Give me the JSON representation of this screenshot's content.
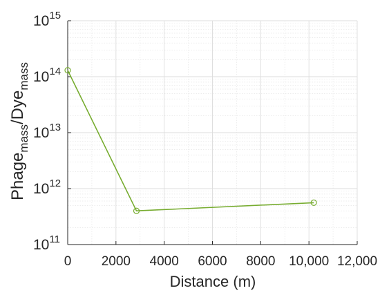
{
  "chart_data": {
    "type": "line",
    "xlabel": "Distance (m)",
    "ylabel": {
      "parts": [
        {
          "text": "Phage",
          "sub": false
        },
        {
          "text": "mass",
          "sub": true
        },
        {
          "text": "/Dye",
          "sub": false
        },
        {
          "text": "mass",
          "sub": true
        }
      ]
    },
    "xlim": [
      0,
      12000
    ],
    "ylim": [
      100000000000,
      1000000000000000
    ],
    "y_scale": "log",
    "grid": true,
    "minor_grid": true,
    "x_ticks": [
      {
        "value": 0,
        "label": "0"
      },
      {
        "value": 2000,
        "label": "2000"
      },
      {
        "value": 4000,
        "label": "4000"
      },
      {
        "value": 6000,
        "label": "6000"
      },
      {
        "value": 8000,
        "label": "8000"
      },
      {
        "value": 10000,
        "label": "10,000"
      },
      {
        "value": 12000,
        "label": "12,000"
      }
    ],
    "y_ticks": [
      {
        "value": 100000000000,
        "base": "10",
        "exp": "11"
      },
      {
        "value": 1000000000000,
        "base": "10",
        "exp": "12"
      },
      {
        "value": 10000000000000,
        "base": "10",
        "exp": "13"
      },
      {
        "value": 100000000000000,
        "base": "10",
        "exp": "14"
      },
      {
        "value": 1000000000000000,
        "base": "10",
        "exp": "15"
      }
    ],
    "series": [
      {
        "color": "#77ac30",
        "marker": "circle",
        "x": [
          0,
          2850,
          10200
        ],
        "y": [
          130000000000000,
          400000000000,
          560000000000
        ]
      }
    ]
  }
}
